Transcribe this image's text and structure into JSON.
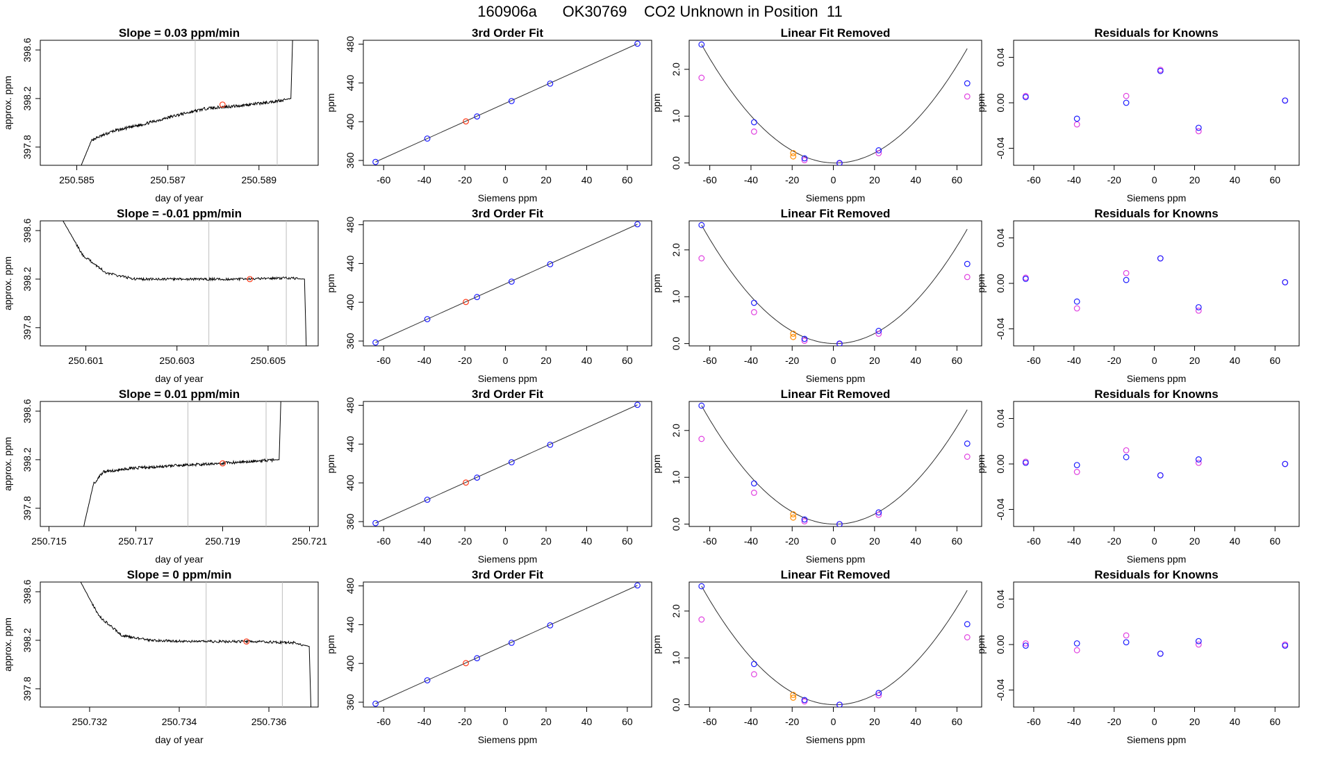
{
  "figure": {
    "title": "160906a      OK30769    CO2 Unknown in Position  11"
  },
  "colors": {
    "trace": "#000000",
    "vline": "#bebebe",
    "fit_line": "#303030",
    "marker_red": "#ff3b1a",
    "marker_orange": "#ff8c00",
    "marker_blue": "#1c1cff",
    "marker_magenta": "#e040e0"
  },
  "chart_data": [
    {
      "type": "line",
      "title": "Slope =  0.03  ppm/min",
      "xlabel": "day of year",
      "ylabel": "approx. ppm",
      "xlim": [
        250.5842,
        250.5903
      ],
      "ylim": [
        397.65,
        398.68
      ],
      "xticks": [
        "250.585",
        "250.587",
        "250.589"
      ],
      "yticks": [
        "397.8",
        "398.2",
        "398.6"
      ],
      "vlines": [
        250.5876,
        250.5894
      ],
      "marker": [
        250.5882,
        398.15
      ],
      "trace": {
        "start": 250.5851,
        "end": 250.5897,
        "points": [
          [
            0,
            397.65
          ],
          [
            0.05,
            397.86
          ],
          [
            0.15,
            397.93
          ],
          [
            0.3,
            397.99
          ],
          [
            0.45,
            398.06
          ],
          [
            0.6,
            398.12
          ],
          [
            0.75,
            398.14
          ],
          [
            0.9,
            398.17
          ],
          [
            1,
            398.2
          ]
        ],
        "noise": 0.012,
        "spike": "up"
      }
    },
    {
      "type": "line",
      "title": "Slope =  -0.01  ppm/min",
      "xlabel": "day of year",
      "ylabel": "approx. ppm",
      "xlim": [
        250.6,
        250.6061
      ],
      "ylim": [
        397.65,
        398.68
      ],
      "xticks": [
        "250.601",
        "250.603",
        "250.605"
      ],
      "yticks": [
        "397.8",
        "398.2",
        "398.6"
      ],
      "vlines": [
        250.6037,
        250.6054
      ],
      "marker": [
        250.6046,
        398.2
      ],
      "trace": {
        "start": 250.6005,
        "end": 250.6058,
        "points": [
          [
            0,
            398.68
          ],
          [
            0.08,
            398.4
          ],
          [
            0.18,
            398.25
          ],
          [
            0.3,
            398.2
          ],
          [
            0.5,
            398.2
          ],
          [
            0.75,
            398.2
          ],
          [
            0.93,
            398.21
          ],
          [
            1,
            398.2
          ]
        ],
        "noise": 0.01,
        "spike": "down"
      }
    },
    {
      "type": "line",
      "title": "Slope =  0.01  ppm/min",
      "xlabel": "day of year",
      "ylabel": "approx. ppm",
      "xlim": [
        250.7148,
        250.7212
      ],
      "ylim": [
        397.65,
        398.68
      ],
      "xticks": [
        "250.715",
        "250.717",
        "250.719",
        "250.721"
      ],
      "yticks": [
        "397.8",
        "398.2",
        "398.6"
      ],
      "vlines": [
        250.7182,
        250.72
      ],
      "marker": [
        250.719,
        398.17
      ],
      "trace": {
        "start": 250.7158,
        "end": 250.7203,
        "points": [
          [
            0,
            397.65
          ],
          [
            0.05,
            398.0
          ],
          [
            0.1,
            398.1
          ],
          [
            0.25,
            398.13
          ],
          [
            0.45,
            398.15
          ],
          [
            0.7,
            398.17
          ],
          [
            0.88,
            398.19
          ],
          [
            1,
            398.2
          ]
        ],
        "noise": 0.012,
        "spike": "up"
      }
    },
    {
      "type": "line",
      "title": "Slope =  0  ppm/min",
      "xlabel": "day of year",
      "ylabel": "approx. ppm",
      "xlim": [
        250.7309,
        250.7371
      ],
      "ylim": [
        397.65,
        398.68
      ],
      "xticks": [
        "250.732",
        "250.734",
        "250.736"
      ],
      "yticks": [
        "397.8",
        "398.2",
        "398.6"
      ],
      "vlines": [
        250.7346,
        250.7363
      ],
      "marker": [
        250.7355,
        398.19
      ],
      "trace": {
        "start": 250.7318,
        "end": 250.7369,
        "points": [
          [
            0,
            398.68
          ],
          [
            0.08,
            398.4
          ],
          [
            0.18,
            398.24
          ],
          [
            0.3,
            398.2
          ],
          [
            0.5,
            398.19
          ],
          [
            0.75,
            398.19
          ],
          [
            0.93,
            398.18
          ],
          [
            1,
            398.15
          ]
        ],
        "noise": 0.01,
        "spike": "down"
      }
    },
    {
      "type": "scatter",
      "title": "3rd Order Fit",
      "xlabel": "Siemens ppm",
      "ylabel": "ppm",
      "xlim": [
        -70,
        72
      ],
      "ylim": [
        355,
        484
      ],
      "xticks": [
        -60,
        -40,
        -20,
        0,
        20,
        40,
        60
      ],
      "yticks": [
        360,
        400,
        440,
        480
      ],
      "line": [
        [
          -64,
          358.5
        ],
        [
          65,
          480.5
        ]
      ],
      "points_blue": [
        [
          -64,
          358.5
        ],
        [
          -38.5,
          382.6
        ],
        [
          -14,
          405.4
        ],
        [
          3,
          421.3
        ],
        [
          22,
          439.3
        ],
        [
          65,
          480.5
        ]
      ],
      "points_red": [
        [
          -19.5,
          400.3
        ]
      ]
    },
    {
      "type": "scatter",
      "title": "3rd Order Fit",
      "xlabel": "Siemens ppm",
      "ylabel": "ppm",
      "xlim": [
        -70,
        72
      ],
      "ylim": [
        355,
        484
      ],
      "xticks": [
        -60,
        -40,
        -20,
        0,
        20,
        40,
        60
      ],
      "yticks": [
        360,
        400,
        440,
        480
      ],
      "line": [
        [
          -64,
          358.5
        ],
        [
          65,
          480.5
        ]
      ],
      "points_blue": [
        [
          -64,
          358.5
        ],
        [
          -38.5,
          382.6
        ],
        [
          -14,
          405.4
        ],
        [
          3,
          421.3
        ],
        [
          22,
          439.3
        ],
        [
          65,
          480.5
        ]
      ],
      "points_red": [
        [
          -19.5,
          400.3
        ]
      ]
    },
    {
      "type": "scatter",
      "title": "3rd Order Fit",
      "xlabel": "Siemens ppm",
      "ylabel": "ppm",
      "xlim": [
        -70,
        72
      ],
      "ylim": [
        355,
        484
      ],
      "xticks": [
        -60,
        -40,
        -20,
        0,
        20,
        40,
        60
      ],
      "yticks": [
        360,
        400,
        440,
        480
      ],
      "line": [
        [
          -64,
          358.5
        ],
        [
          65,
          480.5
        ]
      ],
      "points_blue": [
        [
          -64,
          358.5
        ],
        [
          -38.5,
          382.6
        ],
        [
          -14,
          405.4
        ],
        [
          3,
          421.3
        ],
        [
          22,
          439.3
        ],
        [
          65,
          480.5
        ]
      ],
      "points_red": [
        [
          -19.5,
          400.3
        ]
      ]
    },
    {
      "type": "scatter",
      "title": "3rd Order Fit",
      "xlabel": "Siemens ppm",
      "ylabel": "ppm",
      "xlim": [
        -70,
        72
      ],
      "ylim": [
        355,
        484
      ],
      "xticks": [
        -60,
        -40,
        -20,
        0,
        20,
        40,
        60
      ],
      "yticks": [
        360,
        400,
        440,
        480
      ],
      "line": [
        [
          -64,
          358.5
        ],
        [
          65,
          480.5
        ]
      ],
      "points_blue": [
        [
          -64,
          358.5
        ],
        [
          -38.5,
          382.6
        ],
        [
          -14,
          405.4
        ],
        [
          3,
          421.3
        ],
        [
          22,
          439.3
        ],
        [
          65,
          480.5
        ]
      ],
      "points_red": [
        [
          -19.5,
          400.3
        ]
      ]
    },
    {
      "type": "scatter",
      "title": "Linear Fit Removed",
      "xlabel": "Siemens ppm",
      "ylabel": "ppm",
      "xlim": [
        -70,
        72
      ],
      "ylim": [
        -0.05,
        2.62
      ],
      "xticks": [
        -60,
        -40,
        -20,
        0,
        20,
        40,
        60
      ],
      "yticks": [
        "0.0",
        "1.0",
        "2.0"
      ],
      "curve": {
        "a": 0.000598,
        "b": -0.00127,
        "c": 0.0
      },
      "points_blue": [
        [
          -64,
          2.53
        ],
        [
          -38.5,
          0.87
        ],
        [
          -14,
          0.1
        ],
        [
          3,
          0.0
        ],
        [
          22,
          0.27
        ],
        [
          65,
          1.7
        ]
      ],
      "points_magenta": [
        [
          -64,
          1.82
        ],
        [
          -38.5,
          0.67
        ],
        [
          -14,
          0.06
        ],
        [
          3,
          -0.01
        ],
        [
          22,
          0.21
        ],
        [
          65,
          1.42
        ]
      ],
      "points_orange": [
        [
          -19.5,
          0.21
        ],
        [
          -19.5,
          0.14
        ]
      ]
    },
    {
      "type": "scatter",
      "title": "Linear Fit Removed",
      "xlabel": "Siemens ppm",
      "ylabel": "ppm",
      "xlim": [
        -70,
        72
      ],
      "ylim": [
        -0.05,
        2.62
      ],
      "xticks": [
        -60,
        -40,
        -20,
        0,
        20,
        40,
        60
      ],
      "yticks": [
        "0.0",
        "1.0",
        "2.0"
      ],
      "curve": {
        "a": 0.000598,
        "b": -0.00127,
        "c": 0.0
      },
      "points_blue": [
        [
          -64,
          2.53
        ],
        [
          -38.5,
          0.87
        ],
        [
          -14,
          0.1
        ],
        [
          3,
          0.0
        ],
        [
          22,
          0.27
        ],
        [
          65,
          1.7
        ]
      ],
      "points_magenta": [
        [
          -64,
          1.82
        ],
        [
          -38.5,
          0.67
        ],
        [
          -14,
          0.06
        ],
        [
          3,
          -0.01
        ],
        [
          22,
          0.21
        ],
        [
          65,
          1.42
        ]
      ],
      "points_orange": [
        [
          -19.5,
          0.21
        ],
        [
          -19.5,
          0.14
        ]
      ]
    },
    {
      "type": "scatter",
      "title": "Linear Fit Removed",
      "xlabel": "Siemens ppm",
      "ylabel": "ppm",
      "xlim": [
        -70,
        72
      ],
      "ylim": [
        -0.05,
        2.62
      ],
      "xticks": [
        -60,
        -40,
        -20,
        0,
        20,
        40,
        60
      ],
      "yticks": [
        "0.0",
        "1.0",
        "2.0"
      ],
      "curve": {
        "a": 0.000598,
        "b": -0.00127,
        "c": 0.0
      },
      "points_blue": [
        [
          -64,
          2.53
        ],
        [
          -38.5,
          0.87
        ],
        [
          -14,
          0.1
        ],
        [
          3,
          0.0
        ],
        [
          22,
          0.25
        ],
        [
          65,
          1.72
        ]
      ],
      "points_magenta": [
        [
          -64,
          1.82
        ],
        [
          -38.5,
          0.67
        ],
        [
          -14,
          0.06
        ],
        [
          3,
          0.0
        ],
        [
          22,
          0.2
        ],
        [
          65,
          1.44
        ]
      ],
      "points_orange": [
        [
          -19.5,
          0.21
        ],
        [
          -19.5,
          0.14
        ]
      ]
    },
    {
      "type": "scatter",
      "title": "Linear Fit Removed",
      "xlabel": "Siemens ppm",
      "ylabel": "ppm",
      "xlim": [
        -70,
        72
      ],
      "ylim": [
        -0.05,
        2.62
      ],
      "xticks": [
        -60,
        -40,
        -20,
        0,
        20,
        40,
        60
      ],
      "yticks": [
        "0.0",
        "1.0",
        "2.0"
      ],
      "curve": {
        "a": 0.000598,
        "b": -0.00127,
        "c": 0.0
      },
      "points_blue": [
        [
          -64,
          2.53
        ],
        [
          -38.5,
          0.87
        ],
        [
          -14,
          0.1
        ],
        [
          3,
          0.0
        ],
        [
          22,
          0.25
        ],
        [
          65,
          1.72
        ]
      ],
      "points_magenta": [
        [
          -64,
          1.82
        ],
        [
          -38.5,
          0.65
        ],
        [
          -14,
          0.07
        ],
        [
          3,
          0.0
        ],
        [
          22,
          0.2
        ],
        [
          65,
          1.44
        ]
      ],
      "points_orange": [
        [
          -19.5,
          0.21
        ],
        [
          -19.5,
          0.15
        ]
      ]
    },
    {
      "type": "scatter",
      "title": "Residuals for Knowns",
      "xlabel": "Siemens ppm",
      "ylabel": "ppm",
      "xlim": [
        -70,
        72
      ],
      "ylim": [
        -0.055,
        0.055
      ],
      "xticks": [
        -60,
        -40,
        -20,
        0,
        20,
        40,
        60
      ],
      "yticks": [
        "-0.04",
        "0.00",
        "0.04"
      ],
      "points_blue": [
        [
          -64,
          0.005
        ],
        [
          -38.5,
          -0.014
        ],
        [
          -14,
          0.0
        ],
        [
          3,
          0.028
        ],
        [
          22,
          -0.022
        ],
        [
          65,
          0.002
        ]
      ],
      "points_magenta": [
        [
          -64,
          0.006
        ],
        [
          -38.5,
          -0.019
        ],
        [
          -14,
          0.006
        ],
        [
          3,
          0.029
        ],
        [
          22,
          -0.025
        ],
        [
          65,
          0.002
        ]
      ]
    },
    {
      "type": "scatter",
      "title": "Residuals for Knowns",
      "xlabel": "Siemens ppm",
      "ylabel": "ppm",
      "xlim": [
        -70,
        72
      ],
      "ylim": [
        -0.055,
        0.055
      ],
      "xticks": [
        -60,
        -40,
        -20,
        0,
        20,
        40,
        60
      ],
      "yticks": [
        "-0.04",
        "0.00",
        "0.04"
      ],
      "points_blue": [
        [
          -64,
          0.004
        ],
        [
          -38.5,
          -0.016
        ],
        [
          -14,
          0.003
        ],
        [
          3,
          0.022
        ],
        [
          22,
          -0.021
        ],
        [
          65,
          0.001
        ]
      ],
      "points_magenta": [
        [
          -64,
          0.005
        ],
        [
          -38.5,
          -0.022
        ],
        [
          -14,
          0.009
        ],
        [
          3,
          0.022
        ],
        [
          22,
          -0.024
        ],
        [
          65,
          0.001
        ]
      ]
    },
    {
      "type": "scatter",
      "title": "Residuals for Knowns",
      "xlabel": "Siemens ppm",
      "ylabel": "ppm",
      "xlim": [
        -70,
        72
      ],
      "ylim": [
        -0.055,
        0.055
      ],
      "xticks": [
        -60,
        -40,
        -20,
        0,
        20,
        40,
        60
      ],
      "yticks": [
        "-0.04",
        "0.00",
        "0.04"
      ],
      "points_blue": [
        [
          -64,
          0.001
        ],
        [
          -38.5,
          -0.001
        ],
        [
          -14,
          0.006
        ],
        [
          3,
          -0.01
        ],
        [
          22,
          0.004
        ],
        [
          65,
          0.0
        ]
      ],
      "points_magenta": [
        [
          -64,
          0.002
        ],
        [
          -38.5,
          -0.007
        ],
        [
          -14,
          0.012
        ],
        [
          3,
          -0.01
        ],
        [
          22,
          0.001
        ],
        [
          65,
          0.0
        ]
      ]
    },
    {
      "type": "scatter",
      "title": "Residuals for Knowns",
      "xlabel": "Siemens ppm",
      "ylabel": "ppm",
      "xlim": [
        -70,
        72
      ],
      "ylim": [
        -0.055,
        0.055
      ],
      "xticks": [
        -60,
        -40,
        -20,
        0,
        20,
        40,
        60
      ],
      "yticks": [
        "-0.04",
        "0.00",
        "0.04"
      ],
      "points_blue": [
        [
          -64,
          -0.001
        ],
        [
          -38.5,
          0.001
        ],
        [
          -14,
          0.002
        ],
        [
          3,
          -0.008
        ],
        [
          22,
          0.003
        ],
        [
          65,
          -0.001
        ]
      ],
      "points_magenta": [
        [
          -64,
          0.001
        ],
        [
          -38.5,
          -0.005
        ],
        [
          -14,
          0.008
        ],
        [
          3,
          -0.008
        ],
        [
          22,
          0.0
        ],
        [
          65,
          0.0
        ]
      ]
    }
  ]
}
